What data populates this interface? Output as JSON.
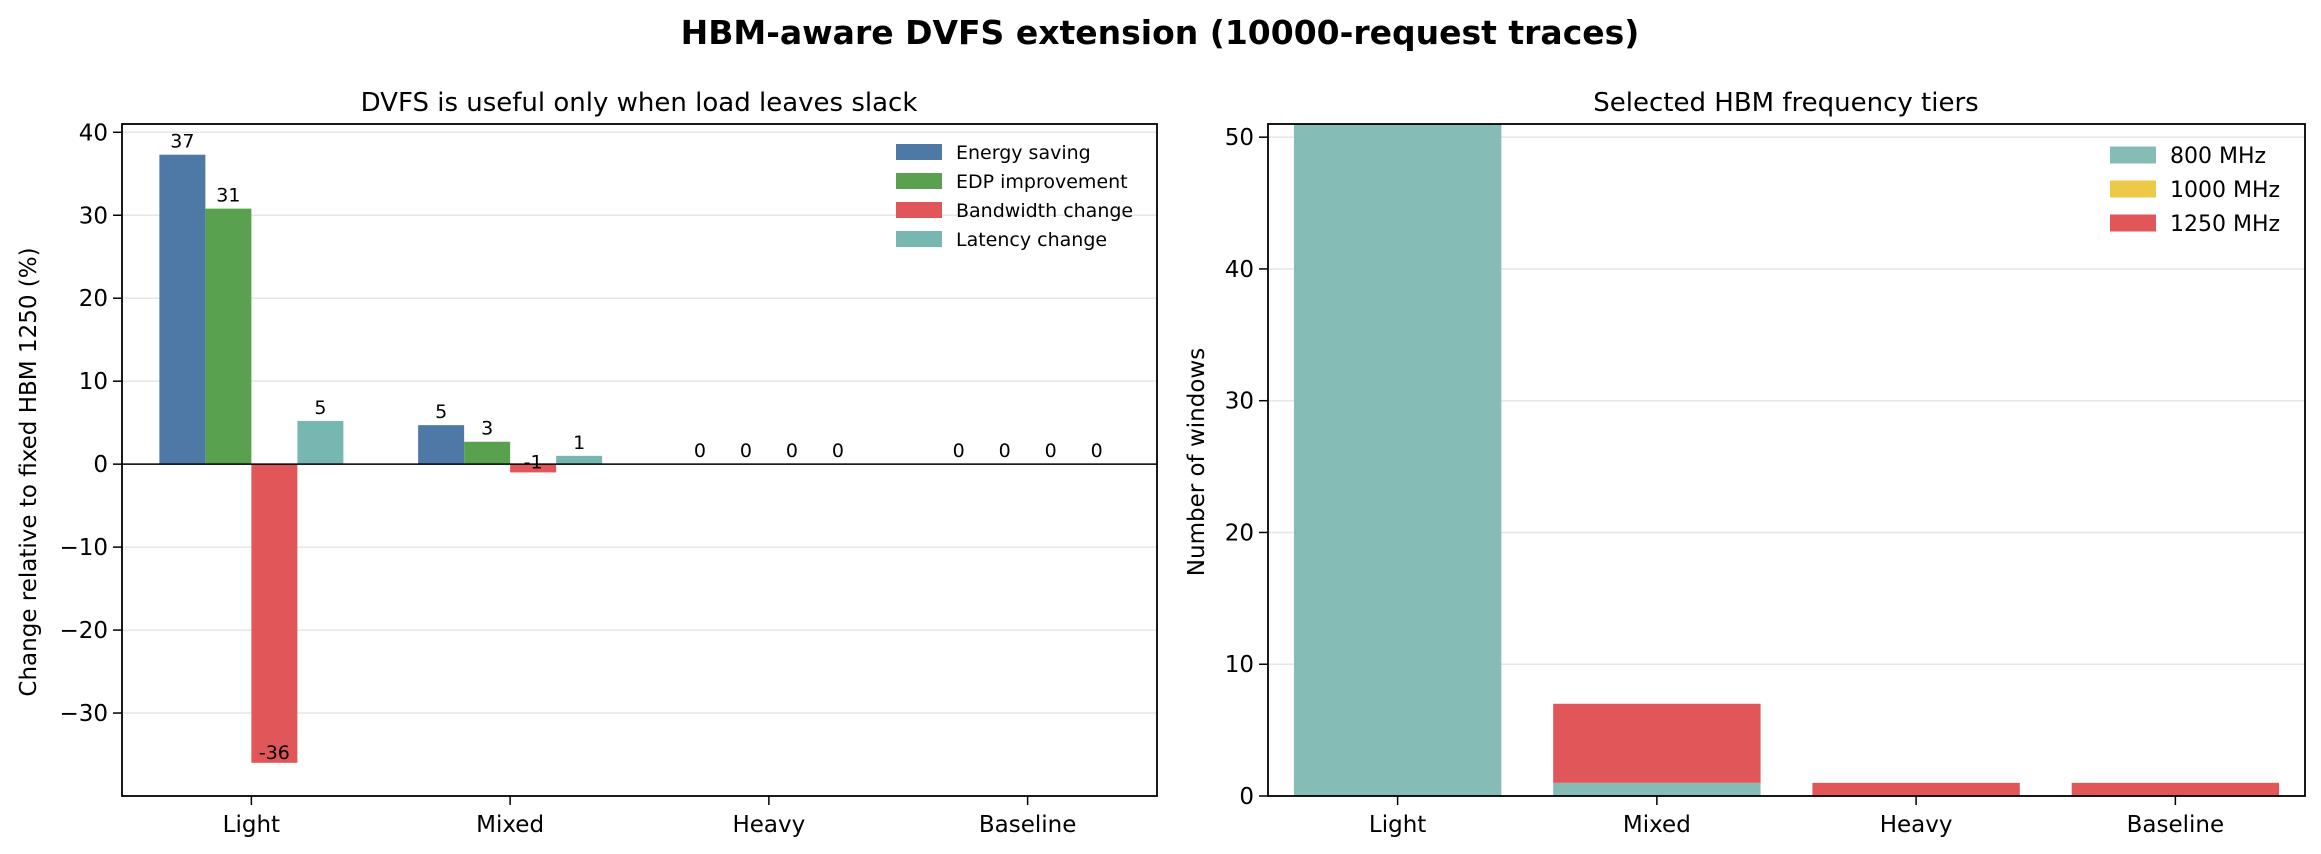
{
  "figure": {
    "suptitle": "HBM-aware DVFS extension (10000-request traces)"
  },
  "chart_data": [
    {
      "type": "bar",
      "title": "DVFS is useful only when load leaves slack",
      "xlabel": "",
      "ylabel": "Change relative to fixed HBM 1250 (%)",
      "categories": [
        "Light",
        "Mixed",
        "Heavy",
        "Baseline"
      ],
      "ylim": [
        -40,
        41
      ],
      "yticks": [
        -30,
        -20,
        -10,
        0,
        10,
        20,
        30,
        40
      ],
      "ytick_labels": [
        "−30",
        "−20",
        "−10",
        "0",
        "10",
        "20",
        "30",
        "40"
      ],
      "grid": "y",
      "legend_position": "top-right",
      "series": [
        {
          "name": "Energy saving",
          "color": "#4e79a7",
          "values": [
            37.3,
            4.7,
            0,
            0
          ],
          "labels": [
            "37",
            "5",
            "0",
            "0"
          ]
        },
        {
          "name": "EDP improvement",
          "color": "#59a14f",
          "values": [
            30.8,
            2.7,
            0,
            0
          ],
          "labels": [
            "31",
            "3",
            "0",
            "0"
          ]
        },
        {
          "name": "Bandwidth change",
          "color": "#e15759",
          "values": [
            -36.0,
            -1.0,
            0,
            0
          ],
          "labels": [
            "-36",
            "-1",
            "0",
            "0"
          ]
        },
        {
          "name": "Latency change",
          "color": "#76b7b2",
          "values": [
            5.2,
            1.0,
            0,
            0
          ],
          "labels": [
            "5",
            "1",
            "0",
            "0"
          ]
        }
      ]
    },
    {
      "type": "bar",
      "stacked": true,
      "title": "Selected HBM frequency tiers",
      "xlabel": "",
      "ylabel": "Number of windows",
      "categories": [
        "Light",
        "Mixed",
        "Heavy",
        "Baseline"
      ],
      "ylim": [
        0,
        51
      ],
      "yticks": [
        0,
        10,
        20,
        30,
        40,
        50
      ],
      "ytick_labels": [
        "0",
        "10",
        "20",
        "30",
        "40",
        "50"
      ],
      "grid": "y",
      "legend_position": "top-right",
      "series": [
        {
          "name": "800 MHz",
          "color": "#86bcb6",
          "values": [
            51,
            1,
            0,
            0
          ]
        },
        {
          "name": "1000 MHz",
          "color": "#edc948",
          "values": [
            0,
            0,
            0,
            0
          ]
        },
        {
          "name": "1250 MHz",
          "color": "#e15759",
          "values": [
            0,
            6,
            1,
            1
          ]
        }
      ]
    }
  ]
}
